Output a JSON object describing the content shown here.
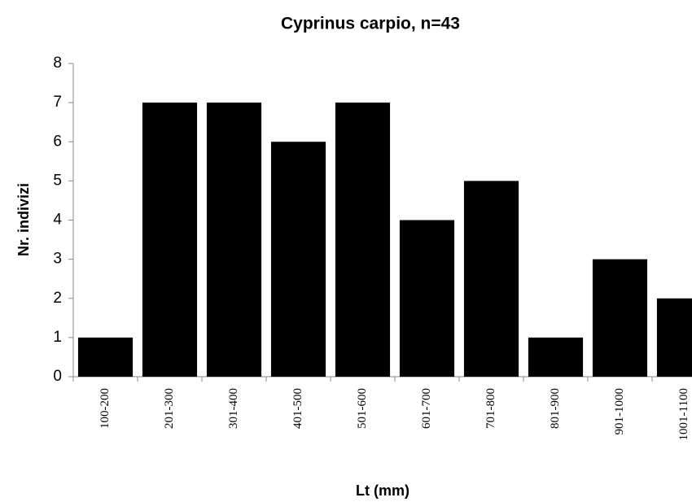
{
  "chart_data": {
    "type": "bar",
    "title": "Cyprinus carpio, n=43",
    "x_label": "Lt (mm)",
    "y_label": "Nr. indivizi",
    "categories": [
      "100-200",
      "201-300",
      "301-400",
      "401-500",
      "501-600",
      "601-700",
      "701-800",
      "801-900",
      "901-1000",
      "1001-1100"
    ],
    "values": [
      1,
      7,
      7,
      6,
      7,
      4,
      5,
      1,
      3,
      2
    ],
    "color": "#000000",
    "ylim": [
      0,
      8
    ],
    "yticks": [
      0,
      1,
      2,
      3,
      4,
      5,
      6,
      7,
      8
    ],
    "grid": false
  }
}
